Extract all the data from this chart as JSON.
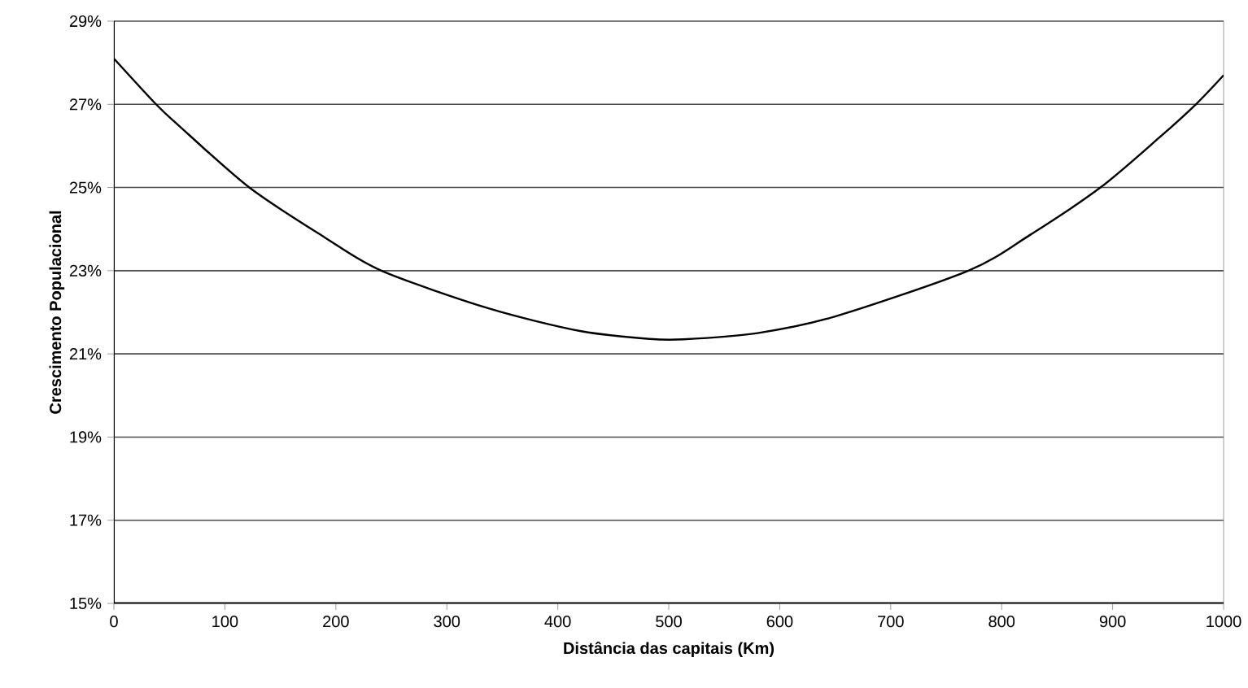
{
  "chart_data": {
    "type": "line",
    "xlabel": "Distância das capitais (Km)",
    "ylabel": "Crescimento Populacional",
    "x": [
      0,
      38,
      58,
      122,
      190,
      241,
      337,
      420,
      483,
      513,
      580,
      650,
      770,
      825,
      889,
      942,
      975,
      1000
    ],
    "series": [
      {
        "color": "#000000",
        "values": [
          28.1,
          27,
          26.5,
          25,
          23.8,
          23,
          22.1,
          21.55,
          21.36,
          21.35,
          21.5,
          21.9,
          23,
          23.85,
          25,
          26.2,
          27,
          27.7
        ]
      }
    ],
    "xlim": [
      0,
      1000
    ],
    "xticks": [
      0,
      100,
      200,
      300,
      400,
      500,
      600,
      700,
      800,
      900,
      1000
    ],
    "ylim": [
      15,
      29
    ],
    "yticks": [
      {
        "value": 15,
        "label": "15%"
      },
      {
        "value": 17,
        "label": "17%"
      },
      {
        "value": 19,
        "label": "19%"
      },
      {
        "value": 21,
        "label": "21%"
      },
      {
        "value": 23,
        "label": "23%"
      },
      {
        "value": 25,
        "label": "25%"
      },
      {
        "value": 27,
        "label": "27%"
      },
      {
        "value": 29,
        "label": "29%"
      }
    ],
    "grid": "y",
    "marker": "none",
    "line_style": "solid"
  }
}
